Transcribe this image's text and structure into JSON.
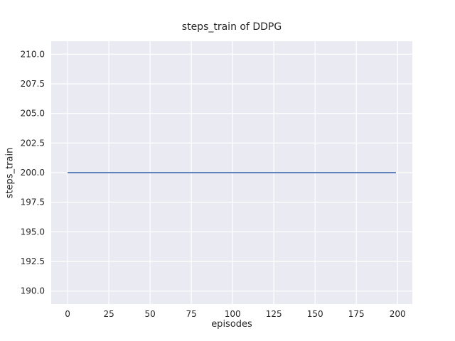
{
  "chart_data": {
    "type": "line",
    "title": "steps_train of DDPG",
    "xlabel": "episodes",
    "ylabel": "steps_train",
    "x_ticks": [
      "0",
      "25",
      "50",
      "75",
      "100",
      "125",
      "150",
      "175",
      "200"
    ],
    "y_ticks": [
      "190.0",
      "192.5",
      "195.0",
      "197.5",
      "200.0",
      "202.5",
      "205.0",
      "207.5",
      "210.0"
    ],
    "xlim": [
      -9.95,
      208.95
    ],
    "ylim": [
      188.9,
      211.1
    ],
    "grid": true,
    "legend_position": "none",
    "plot_bg_color": "#eaeaf2",
    "grid_color": "#ffffff",
    "series": [
      {
        "name": "steps_train",
        "color": "#4c72b0",
        "x": [
          0,
          199
        ],
        "y": [
          200,
          200
        ]
      }
    ]
  }
}
